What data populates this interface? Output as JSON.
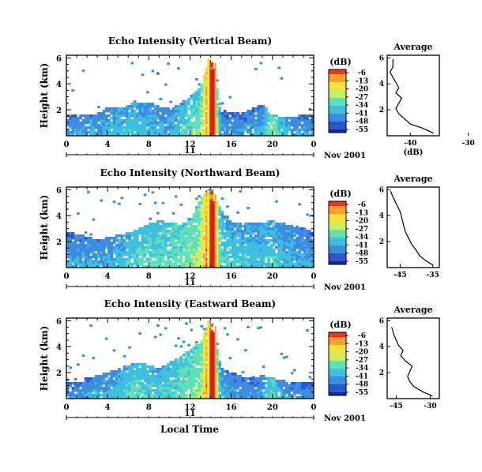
{
  "colors": {
    "axis": "#000000",
    "background": "#ffffff",
    "rain": "#d81e1e",
    "colormap": [
      "#1a2a8c",
      "#2f56c8",
      "#3d8ce0",
      "#3fbfe0",
      "#5fe0b8",
      "#c8f060",
      "#f5e23a",
      "#f6a12a",
      "#e8361f"
    ]
  },
  "panels": [
    {
      "title": "Echo Intensity (Vertical Beam)",
      "ylabel": "Height (km)",
      "y_ticks": [
        "2",
        "4",
        "6"
      ],
      "x_ticks": [
        "0",
        "4",
        "8",
        "12",
        "16",
        "20",
        "0"
      ],
      "date_label": "11",
      "month_year_label": "Nov 2001",
      "colorbar_unit": "(dB)",
      "colorbar_ticks": [
        "-6",
        "-13",
        "-20",
        "-27",
        "-34",
        "-41",
        "-48",
        "-55"
      ],
      "avg_title": "Average",
      "avg_xlabel": "(dB)",
      "avg_x_ticks": [
        "-40",
        "-30"
      ],
      "avg_y_ticks": [
        "2",
        "4",
        "6"
      ]
    },
    {
      "title": "Echo Intensity (Northward Beam)",
      "ylabel": "Height (km)",
      "y_ticks": [
        "2",
        "4",
        "6"
      ],
      "x_ticks": [
        "0",
        "4",
        "8",
        "12",
        "16",
        "20",
        "0"
      ],
      "date_label": "11",
      "month_year_label": "Nov 2001",
      "colorbar_unit": "(dB)",
      "colorbar_ticks": [
        "-6",
        "-13",
        "-20",
        "-27",
        "-34",
        "-41",
        "-48",
        "-55"
      ],
      "avg_title": "Average",
      "avg_xlabel": "",
      "avg_x_ticks": [
        "-45",
        "-35"
      ],
      "avg_y_ticks": [
        "2",
        "4",
        "6"
      ]
    },
    {
      "title": "Echo Intensity (Eastward Beam)",
      "ylabel": "Height (km)",
      "y_ticks": [
        "2",
        "4",
        "6"
      ],
      "x_ticks": [
        "0",
        "4",
        "8",
        "12",
        "16",
        "20",
        "0"
      ],
      "date_label": "11",
      "month_year_label": "Nov 2001",
      "colorbar_unit": "(dB)",
      "colorbar_ticks": [
        "-6",
        "-13",
        "-20",
        "-27",
        "-34",
        "-41",
        "-48",
        "-55"
      ],
      "avg_title": "Average",
      "avg_xlabel": "",
      "avg_x_ticks": [
        "-45",
        "-30"
      ],
      "avg_y_ticks": [
        "2",
        "4",
        "6"
      ]
    }
  ],
  "xlabel": "Local Time",
  "chart_data": [
    {
      "type": "heatmap",
      "title": "Echo Intensity (Vertical Beam)",
      "xlabel": "",
      "ylabel": "Height (km)",
      "xlim": [
        0,
        24
      ],
      "ylim": [
        0,
        6.2
      ],
      "colorbar_range": [
        -55,
        -6
      ],
      "surface_layer_top_km": [
        1.6,
        1.6,
        1.7,
        1.7,
        2.2,
        2.2,
        2.4,
        2.6,
        2.6,
        2.3,
        2.1,
        2.4,
        3.0,
        3.8,
        6.2,
        2.0,
        1.8,
        1.8,
        2.1,
        2.4,
        1.6,
        1.5,
        1.5,
        1.6,
        1.6
      ],
      "surface_layer_dB": [
        -46,
        -45,
        -44,
        -44,
        -43,
        -41,
        -40,
        -41,
        -42,
        -43,
        -43,
        -40,
        -36,
        -34,
        -6,
        -45,
        -46,
        -46,
        -45,
        -44,
        -30,
        -42,
        -44,
        -45,
        -46
      ],
      "rain_interval_h": [
        13.9,
        14.4
      ]
    },
    {
      "type": "heatmap",
      "title": "Echo Intensity (Northward Beam)",
      "xlabel": "",
      "ylabel": "Height (km)",
      "xlim": [
        0,
        24
      ],
      "ylim": [
        0,
        6.2
      ],
      "colorbar_range": [
        -55,
        -6
      ],
      "surface_layer_top_km": [
        2.8,
        2.6,
        2.4,
        2.2,
        2.3,
        2.5,
        2.7,
        3.0,
        3.4,
        3.6,
        3.5,
        3.3,
        3.6,
        5.4,
        6.2,
        4.5,
        3.6,
        3.4,
        3.4,
        3.5,
        3.6,
        3.4,
        3.2,
        3.0,
        2.8
      ],
      "surface_layer_dB": [
        -45,
        -45,
        -44,
        -44,
        -43,
        -42,
        -40,
        -38,
        -37,
        -37,
        -36,
        -35,
        -33,
        -30,
        -6,
        -38,
        -40,
        -40,
        -41,
        -41,
        -40,
        -42,
        -43,
        -44,
        -45
      ],
      "rain_interval_h": [
        13.9,
        14.4
      ]
    },
    {
      "type": "heatmap",
      "title": "Echo Intensity (Eastward Beam)",
      "xlabel": "Local Time",
      "ylabel": "Height (km)",
      "xlim": [
        0,
        24
      ],
      "ylim": [
        0,
        6.2
      ],
      "colorbar_range": [
        -55,
        -6
      ],
      "surface_layer_top_km": [
        1.2,
        1.3,
        1.6,
        1.8,
        2.0,
        2.3,
        2.6,
        2.8,
        2.6,
        2.3,
        2.8,
        3.2,
        3.8,
        4.4,
        6.2,
        2.4,
        2.0,
        1.8,
        1.6,
        1.8,
        1.6,
        1.4,
        1.3,
        1.3,
        1.2
      ],
      "surface_layer_dB": [
        -47,
        -46,
        -45,
        -44,
        -43,
        -42,
        -38,
        -37,
        -39,
        -40,
        -38,
        -36,
        -34,
        -33,
        -6,
        -44,
        -45,
        -46,
        -46,
        -45,
        -35,
        -45,
        -46,
        -47,
        -47
      ],
      "rain_interval_h": [
        13.9,
        14.4
      ]
    },
    {
      "type": "line",
      "title": "Average",
      "xlabel": "(dB)",
      "ylabel": "",
      "xlim": [
        -44,
        -35
      ],
      "ylim": [
        0,
        6.2
      ],
      "x": [
        -36,
        -38,
        -40,
        -41,
        -42,
        -42.5,
        -42,
        -41.5,
        -42.5,
        -42,
        -42.5,
        -43,
        -43.5,
        -43,
        -43
      ],
      "y": [
        0.2,
        0.6,
        0.9,
        1.3,
        1.7,
        2.1,
        2.5,
        2.9,
        3.3,
        3.7,
        4.1,
        4.5,
        4.9,
        5.3,
        5.9
      ]
    },
    {
      "type": "line",
      "title": "Average",
      "xlabel": "",
      "ylabel": "",
      "xlim": [
        -49,
        -33
      ],
      "ylim": [
        0,
        6.2
      ],
      "x": [
        -35,
        -37,
        -39,
        -40,
        -41.5,
        -42.5,
        -43.5,
        -44,
        -44.5,
        -45,
        -46,
        -47,
        -48
      ],
      "y": [
        0.2,
        0.5,
        0.9,
        1.3,
        1.8,
        2.3,
        2.8,
        3.3,
        3.8,
        4.3,
        4.8,
        5.3,
        5.9
      ]
    },
    {
      "type": "line",
      "title": "Average",
      "xlabel": "",
      "ylabel": "",
      "xlim": [
        -49,
        -26
      ],
      "ylim": [
        0,
        6.2
      ],
      "x": [
        -29,
        -33,
        -37,
        -39,
        -40,
        -39,
        -38,
        -41,
        -43,
        -42,
        -44,
        -45,
        -46,
        -47
      ],
      "y": [
        0.2,
        0.5,
        0.9,
        1.3,
        1.7,
        2.1,
        2.5,
        2.9,
        3.3,
        3.7,
        4.1,
        4.5,
        4.9,
        5.5
      ]
    }
  ]
}
